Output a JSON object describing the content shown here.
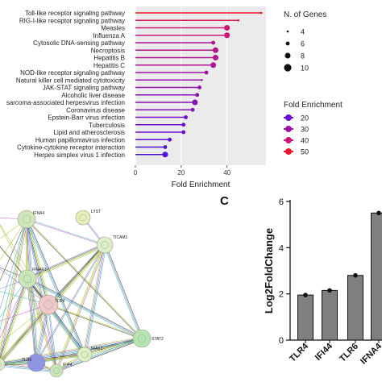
{
  "panels": {
    "panel_c_letter": "C"
  },
  "chart_data": [
    {
      "type": "lollipop",
      "orientation": "horizontal",
      "categories": [
        "Toll-like receptor signaling pathway",
        "RIG-I-like receptor signaling pathway",
        "Measles",
        "Influenza A",
        "Cytosolic DNA-sensing pathway",
        "Necroptosis",
        "Hepatitis B",
        "Hepatitis C",
        "NOD-like receptor signaling pathway",
        "Natural killer cell mediated cytotoxicity",
        "JAK-STAT signaling pathway",
        "Alcoholic liver disease",
        "sarcoma-associated herpesvirus infection",
        "Coronavirus disease",
        "Epstein-Barr virus infection",
        "Tuberculosis",
        "Lipid and atherosclerosis",
        "Human papillomavirus infection",
        "Cytokine-cytokine receptor interaction",
        "Herpes simplex virus 1 infection"
      ],
      "values": [
        55,
        45,
        40,
        40,
        34,
        35,
        35,
        34,
        31,
        29,
        28,
        27,
        26,
        25,
        22,
        21,
        21,
        15,
        13,
        13
      ],
      "gene_counts": [
        4,
        4,
        8,
        8,
        6,
        8,
        8,
        8,
        6,
        4,
        6,
        6,
        8,
        6,
        6,
        6,
        6,
        6,
        6,
        8
      ],
      "xlabel": "Fold Enrichment",
      "xticks": [
        0,
        20,
        40
      ],
      "xlim": [
        0,
        57
      ],
      "background": "#ebebeb",
      "legend_size": {
        "title": "N. of Genes",
        "entries": [
          4,
          6,
          8,
          10
        ]
      },
      "legend_color": {
        "title": "Fold Enrichment",
        "entries": [
          20,
          30,
          40,
          50
        ],
        "colors": [
          "#6a0fd0",
          "#9b12a8",
          "#cc1678",
          "#e8192c"
        ],
        "low_color": "#1c1ef0",
        "high_color": "#ee1616"
      }
    },
    {
      "type": "network",
      "nodes": [
        {
          "label": "IFNA4",
          "color": "#cfe7b8"
        },
        {
          "label": "LYST",
          "color": "#e7efb5"
        },
        {
          "label": "TICAM1",
          "color": "#dcefc6"
        },
        {
          "label": "IFNAR1",
          "color": "#c9e7b6"
        },
        {
          "label": "TLR4",
          "color": "#f1c7c7"
        },
        {
          "label": "STAT2",
          "color": "#b6e6b0"
        },
        {
          "label": "IRAK3",
          "color": "#dfefc6"
        },
        {
          "label": "TLR6",
          "color": "#8f93e6"
        },
        {
          "label": "IFI44",
          "color": "#c9e7b6"
        },
        {
          "label": "",
          "color": "#d8ecc8"
        }
      ],
      "edge_colors": [
        "#2db7a6",
        "#c54fc1",
        "#8fcf33",
        "#b7b300",
        "#333333",
        "#5d86d6"
      ]
    },
    {
      "type": "bar",
      "categories": [
        "TLR4",
        "IFI44",
        "TLR6",
        "IFNA4"
      ],
      "values": [
        1.95,
        2.15,
        2.8,
        5.5
      ],
      "ylabel": "Log2FoldChange",
      "ylim": [
        0,
        6
      ],
      "yticks": [
        0,
        2,
        4,
        6
      ],
      "bar_color": "#7f7f7f"
    }
  ]
}
